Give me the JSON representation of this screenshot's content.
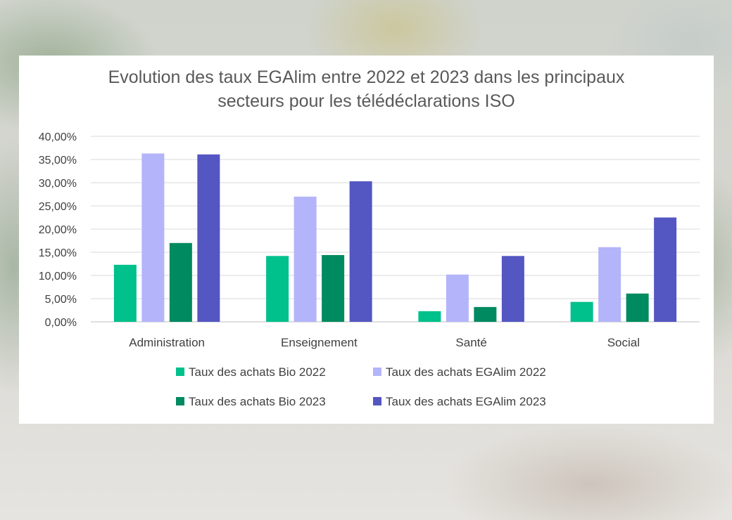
{
  "chart_data": {
    "type": "bar",
    "title_lines": [
      "Evolution des taux EGAlim entre 2022 et 2023 dans les principaux",
      "secteurs pour les télédéclarations ISO"
    ],
    "categories": [
      "Administration",
      "Enseignement",
      "Santé",
      "Social"
    ],
    "series": [
      {
        "name": "Taux des achats Bio 2022",
        "color": "#00c08b",
        "values": [
          12.3,
          14.2,
          2.3,
          4.3
        ]
      },
      {
        "name": "Taux des achats EGAlim 2022",
        "color": "#b4b4fa",
        "values": [
          36.3,
          27.0,
          10.2,
          16.1
        ]
      },
      {
        "name": "Taux des achats Bio 2023",
        "color": "#008a60",
        "values": [
          17.0,
          14.4,
          3.2,
          6.1
        ]
      },
      {
        "name": "Taux des achats EGAlim 2023",
        "color": "#5456c2",
        "values": [
          36.1,
          30.3,
          14.2,
          22.5
        ]
      }
    ],
    "ylim": [
      0,
      40
    ],
    "yticks": [
      "0,00%",
      "5,00%",
      "10,00%",
      "15,00%",
      "20,00%",
      "25,00%",
      "30,00%",
      "35,00%",
      "40,00%"
    ],
    "grid": true,
    "legend_position": "bottom"
  }
}
